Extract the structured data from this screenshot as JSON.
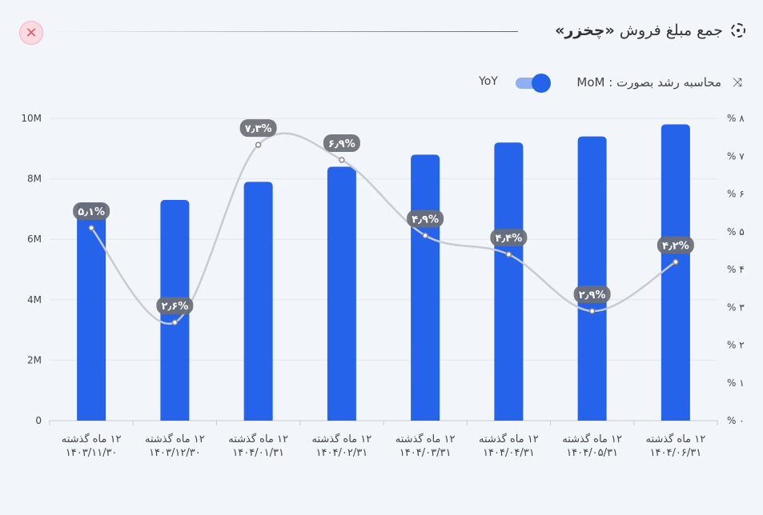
{
  "header": {
    "title_prefix": "جمع مبلغ فروش",
    "title_name": "«چخزر»",
    "close_label": "×",
    "growth_label": "محاسبه رشد بصورت :",
    "mom_label": "MoM",
    "yoy_label": "YoY",
    "toggle_on": "MoM"
  },
  "colors": {
    "bar": "#2563eb",
    "line": "#c9cbd0",
    "badge": "#6b6e75"
  },
  "chart_data": {
    "type": "bar+line",
    "categories": [
      [
        "۱۲ ماه گذشته",
        "۱۴۰۳/۱۱/۳۰"
      ],
      [
        "۱۲ ماه گذشته",
        "۱۴۰۳/۱۲/۳۰"
      ],
      [
        "۱۲ ماه گذشته",
        "۱۴۰۴/۰۱/۳۱"
      ],
      [
        "۱۲ ماه گذشته",
        "۱۴۰۴/۰۲/۳۱"
      ],
      [
        "۱۲ ماه گذشته",
        "۱۴۰۴/۰۳/۳۱"
      ],
      [
        "۱۲ ماه گذشته",
        "۱۴۰۴/۰۴/۳۱"
      ],
      [
        "۱۲ ماه گذشته",
        "۱۴۰۴/۰۵/۳۱"
      ],
      [
        "۱۲ ماه گذشته",
        "۱۴۰۴/۰۶/۳۱"
      ]
    ],
    "series": [
      {
        "name": "sales",
        "type": "bar",
        "axis": "left",
        "unit": "M",
        "values": [
          7.2,
          7.3,
          7.9,
          8.4,
          8.8,
          9.2,
          9.4,
          9.8
        ]
      },
      {
        "name": "growth",
        "type": "line",
        "axis": "right",
        "unit": "%",
        "values": [
          5.1,
          2.6,
          7.3,
          6.9,
          4.9,
          4.4,
          2.9,
          4.2
        ],
        "labels": [
          "۵٫۱%",
          "۲٫۶%",
          "۷٫۳%",
          "۶٫۹%",
          "۴٫۹%",
          "۴٫۴%",
          "۲٫۹%",
          "۴٫۲%"
        ]
      }
    ],
    "ylim_left": [
      0,
      10
    ],
    "ylim_right": [
      0,
      8
    ],
    "left_ticks": [
      "0",
      "2M",
      "4M",
      "6M",
      "8M",
      "10M"
    ],
    "right_ticks": [
      "% ۰",
      "% ۱",
      "% ۲",
      "% ۳",
      "% ۴",
      "% ۵",
      "% ۶",
      "% ۷",
      "% ۸"
    ],
    "grid": true
  }
}
